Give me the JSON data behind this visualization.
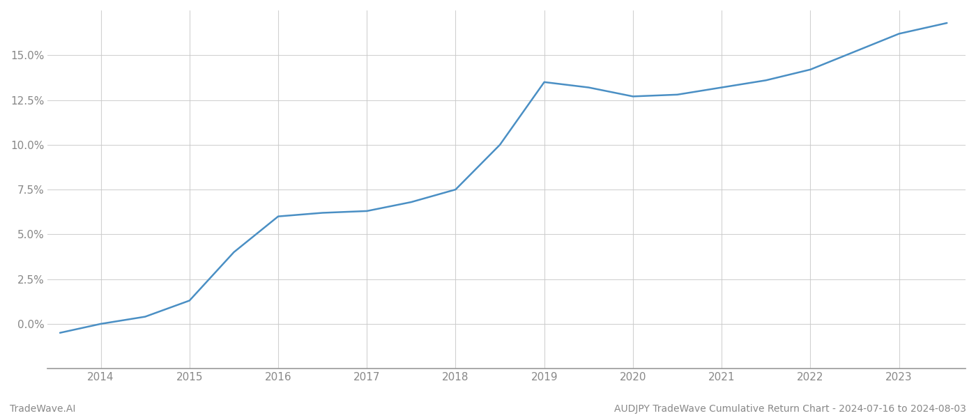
{
  "x_years": [
    2013.54,
    2014.0,
    2014.5,
    2015.0,
    2015.5,
    2016.0,
    2016.5,
    2017.0,
    2017.5,
    2018.0,
    2018.5,
    2019.0,
    2019.5,
    2020.0,
    2020.5,
    2021.0,
    2021.5,
    2022.0,
    2022.5,
    2023.0,
    2023.54
  ],
  "y_values": [
    -0.005,
    0.0,
    0.004,
    0.013,
    0.04,
    0.06,
    0.062,
    0.063,
    0.068,
    0.075,
    0.1,
    0.135,
    0.132,
    0.127,
    0.128,
    0.132,
    0.136,
    0.142,
    0.152,
    0.162,
    0.168
  ],
  "line_color": "#4a8fc4",
  "line_width": 1.8,
  "background_color": "#ffffff",
  "grid_color": "#cccccc",
  "footer_left": "TradeWave.AI",
  "footer_right": "AUDJPY TradeWave Cumulative Return Chart - 2024-07-16 to 2024-08-03",
  "xlim": [
    2013.4,
    2023.75
  ],
  "ylim": [
    -0.025,
    0.175
  ],
  "xtick_labels": [
    "2014",
    "2015",
    "2016",
    "2017",
    "2018",
    "2019",
    "2020",
    "2021",
    "2022",
    "2023"
  ],
  "xtick_positions": [
    2014,
    2015,
    2016,
    2017,
    2018,
    2019,
    2020,
    2021,
    2022,
    2023
  ],
  "ytick_positions": [
    0.0,
    0.025,
    0.05,
    0.075,
    0.1,
    0.125,
    0.15
  ],
  "ytick_labels": [
    "0.0%",
    "2.5%",
    "5.0%",
    "7.5%",
    "10.0%",
    "12.5%",
    "15.0%"
  ],
  "tick_label_color": "#888888",
  "footer_fontsize": 10,
  "axis_fontsize": 11
}
